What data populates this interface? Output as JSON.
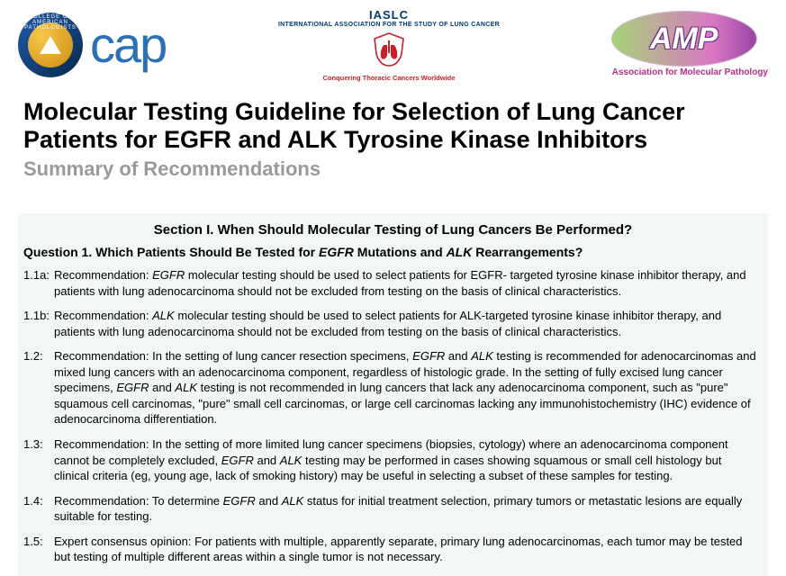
{
  "header": {
    "cap": {
      "ring_text": "COLLEGE OF AMERICAN PATHOLOGISTS",
      "word": "cap"
    },
    "iaslc": {
      "line1": "IASLC",
      "line2": "INTERNATIONAL ASSOCIATION FOR THE STUDY OF LUNG CANCER",
      "line3": "Conquering Thoracic Cancers Worldwide"
    },
    "amp": {
      "word": "AMP",
      "sub": "Association for Molecular Pathology"
    }
  },
  "title_block": {
    "title": "Molecular Testing Guideline for Selection of Lung Cancer Patients for EGFR and ALK Tyrosine Kinase Inhibitors",
    "subtitle": "Summary of Recommendations"
  },
  "section": {
    "title": "Section I. When Should Molecular Testing of Lung Cancers Be Performed?",
    "question_pre": "Question 1. Which Patients Should Be Tested for ",
    "gene1": "EGFR",
    "question_mid": " Mutations and ",
    "gene2": "ALK",
    "question_post": " Rearrangements?",
    "recs": [
      {
        "num": "1.1a:",
        "pre": "Recommendation: ",
        "g1": "EGFR",
        "post": " molecular testing should be used to select patients for EGFR- targeted tyrosine kinase inhibitor therapy, and patients with lung adenocarcinoma should not be excluded from testing on the basis of clinical characteristics."
      },
      {
        "num": "1.1b:",
        "pre": "Recommendation: ",
        "g1": "ALK",
        "post": " molecular testing should be used to select patients for ALK-targeted tyrosine kinase inhibitor therapy, and patients with lung adenocarcinoma should not be excluded from testing on the basis of clinical characteristics."
      },
      {
        "num": "1.2:",
        "pre": "Recommendation: In the setting of lung cancer resection specimens, ",
        "g1": "EGFR",
        "mid1": " and ",
        "g2": "ALK",
        "mid2": " testing is recommended for adenocarcinomas and mixed lung cancers with an adenocarcinoma component, regardless of histologic grade. In the setting of fully excised lung cancer specimens, ",
        "g3": "EGFR",
        "mid3": " and ",
        "g4": "ALK",
        "post": " testing is not recommended in lung cancers that lack any adenocarcinoma component, such as \"pure\" squamous cell carcinomas, \"pure\" small cell carcinomas, or large cell carcinomas lacking any immunohistochemistry (IHC) evidence of adenocarcinoma differentiation."
      },
      {
        "num": "1.3:",
        "pre": "Recommendation: In the setting of more limited lung cancer specimens (biopsies, cytology) where an adenocarcinoma component cannot be completely excluded, ",
        "g1": "EGFR",
        "mid1": " and ",
        "g2": "ALK",
        "post": " testing may be performed in cases showing squamous or small cell histology but clinical criteria (eg, young age, lack of smoking history) may be useful in selecting a subset of these samples for testing."
      },
      {
        "num": "1.4:",
        "pre": "Recommendation: To determine ",
        "g1": "EGFR",
        "mid1": " and ",
        "g2": "ALK",
        "post": " status for initial treatment selection, primary tumors or metastatic lesions are equally suitable for testing."
      },
      {
        "num": "1.5:",
        "pre": "Expert consensus opinion: For patients with multiple, apparently separate, primary lung adenocarcinomas, each tumor may be tested but testing of multiple different areas within a single tumor is not necessary.",
        "post": ""
      }
    ]
  },
  "colors": {
    "title": "#000000",
    "subtitle": "#9a9a9a",
    "box_bg": "#f3f6f7",
    "cap_blue": "#2b71b4",
    "iaslc_navy": "#003a70",
    "iaslc_red": "#c72028",
    "amp_pink": "#b82e8a"
  }
}
